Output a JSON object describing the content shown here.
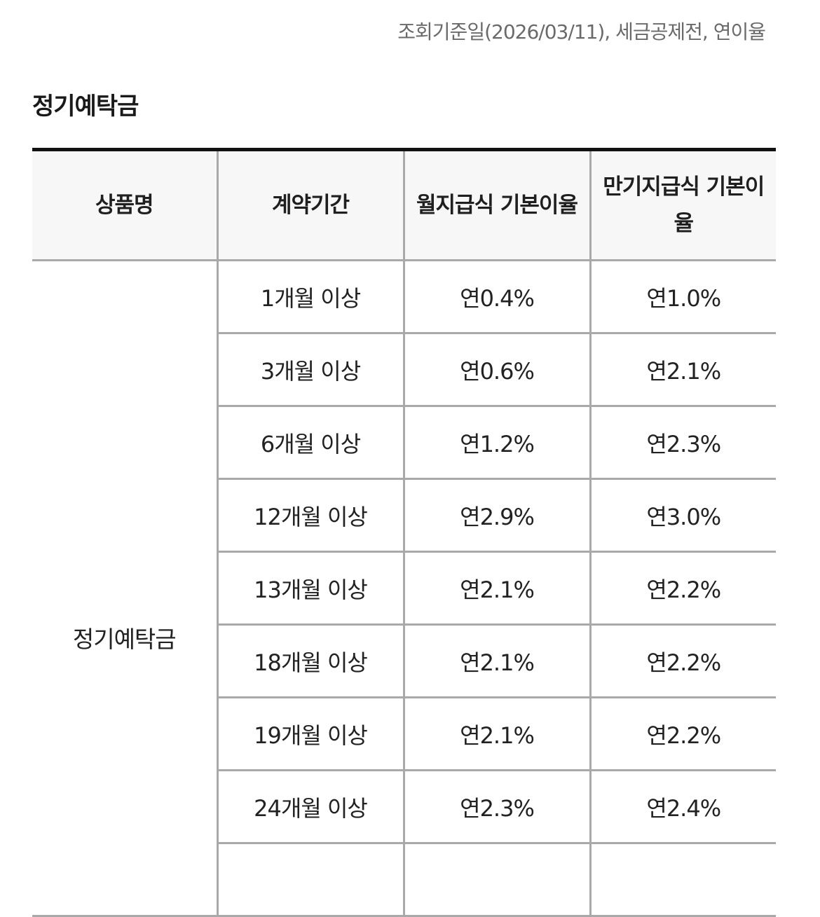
{
  "notice": "조회기준일(2026/03/11), 세금공제전, 연이율",
  "section_title": "정기예탁금",
  "table": {
    "headers": [
      "상품명",
      "계약기간",
      "월지급식 기본이율",
      "만기지급식 기본이율"
    ],
    "product_name": "정기예탁금",
    "rows": [
      {
        "period": "1개월 이상",
        "monthly": "연0.4%",
        "maturity": "연1.0%"
      },
      {
        "period": "3개월 이상",
        "monthly": "연0.6%",
        "maturity": "연2.1%"
      },
      {
        "period": "6개월 이상",
        "monthly": "연1.2%",
        "maturity": "연2.3%"
      },
      {
        "period": "12개월 이상",
        "monthly": "연2.9%",
        "maturity": "연3.0%"
      },
      {
        "period": "13개월 이상",
        "monthly": "연2.1%",
        "maturity": "연2.2%"
      },
      {
        "period": "18개월 이상",
        "monthly": "연2.1%",
        "maturity": "연2.2%"
      },
      {
        "period": "19개월 이상",
        "monthly": "연2.1%",
        "maturity": "연2.2%"
      },
      {
        "period": "24개월 이상",
        "monthly": "연2.3%",
        "maturity": "연2.4%"
      },
      {
        "period": "",
        "monthly": "",
        "maturity": ""
      }
    ]
  }
}
